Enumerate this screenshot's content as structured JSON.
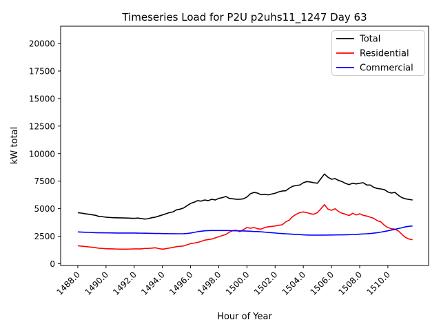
{
  "title": "Timeseries Load for P2U p2uhs11_1247  Day 63",
  "chart_data": {
    "type": "line",
    "title": "Timeseries Load for P2U p2uhs11_1247  Day 63",
    "xlabel": "Hour of Year",
    "ylabel": "kW total",
    "xlim": [
      1486.78,
      1512.89
    ],
    "ylim": [
      -160,
      21570
    ],
    "grid": false,
    "legend_position": "upper right",
    "xticks": [
      1488,
      1490,
      1492,
      1494,
      1496,
      1498,
      1500,
      1502,
      1504,
      1506,
      1508,
      1510
    ],
    "xtick_labels": [
      "1488.0",
      "1490.0",
      "1492.0",
      "1494.0",
      "1496.0",
      "1498.0",
      "1500.0",
      "1502.0",
      "1504.0",
      "1506.0",
      "1508.0",
      "1510.0"
    ],
    "yticks": [
      0,
      2500,
      5000,
      7500,
      10000,
      12500,
      15000,
      17500,
      20000
    ],
    "ytick_labels": [
      "0",
      "2500",
      "5000",
      "7500",
      "10000",
      "12500",
      "15000",
      "17500",
      "20000"
    ],
    "x_start": 1488.0,
    "x_step": 0.25,
    "series": [
      {
        "name": "Total",
        "color": "#000000",
        "values": [
          4630,
          4600,
          4540,
          4500,
          4445,
          4400,
          4290,
          4270,
          4225,
          4200,
          4180,
          4170,
          4165,
          4155,
          4150,
          4135,
          4120,
          4150,
          4100,
          4055,
          4090,
          4180,
          4230,
          4330,
          4430,
          4540,
          4645,
          4705,
          4895,
          4955,
          5060,
          5270,
          5475,
          5585,
          5730,
          5685,
          5790,
          5730,
          5855,
          5790,
          5935,
          6000,
          6105,
          5935,
          5895,
          5855,
          5855,
          5895,
          6060,
          6355,
          6480,
          6415,
          6270,
          6310,
          6250,
          6330,
          6400,
          6525,
          6605,
          6625,
          6855,
          7040,
          7105,
          7150,
          7355,
          7460,
          7420,
          7355,
          7310,
          7730,
          8150,
          7855,
          7670,
          7730,
          7565,
          7460,
          7290,
          7185,
          7310,
          7250,
          7310,
          7355,
          7150,
          7150,
          6935,
          6835,
          6790,
          6730,
          6520,
          6415,
          6480,
          6210,
          6000,
          5895,
          5835,
          5790
        ]
      },
      {
        "name": "Residential",
        "color": "#ff0000",
        "values": [
          1630,
          1600,
          1565,
          1530,
          1500,
          1455,
          1410,
          1390,
          1365,
          1355,
          1345,
          1335,
          1325,
          1325,
          1325,
          1335,
          1345,
          1345,
          1345,
          1390,
          1390,
          1420,
          1450,
          1375,
          1325,
          1365,
          1425,
          1480,
          1550,
          1580,
          1615,
          1720,
          1825,
          1875,
          1930,
          2035,
          2140,
          2190,
          2240,
          2345,
          2455,
          2555,
          2650,
          2865,
          3005,
          3035,
          2910,
          3100,
          3285,
          3225,
          3285,
          3180,
          3140,
          3285,
          3350,
          3390,
          3430,
          3490,
          3535,
          3805,
          3955,
          4290,
          4495,
          4645,
          4705,
          4645,
          4540,
          4495,
          4645,
          4995,
          5370,
          4960,
          4850,
          4995,
          4745,
          4580,
          4495,
          4370,
          4580,
          4430,
          4540,
          4395,
          4330,
          4225,
          4120,
          3910,
          3805,
          3495,
          3285,
          3180,
          3140,
          2975,
          2660,
          2390,
          2240,
          2180
        ]
      },
      {
        "name": "Commercial",
        "color": "#0000ff",
        "values": [
          2890,
          2875,
          2860,
          2845,
          2830,
          2820,
          2812,
          2808,
          2805,
          2800,
          2795,
          2790,
          2785,
          2785,
          2785,
          2785,
          2785,
          2780,
          2775,
          2770,
          2765,
          2758,
          2750,
          2745,
          2740,
          2735,
          2728,
          2724,
          2720,
          2720,
          2725,
          2750,
          2785,
          2845,
          2910,
          2950,
          2990,
          3005,
          3015,
          3015,
          3015,
          3015,
          3015,
          3010,
          3000,
          2990,
          2985,
          2975,
          2965,
          2950,
          2930,
          2920,
          2900,
          2870,
          2840,
          2820,
          2790,
          2760,
          2740,
          2720,
          2700,
          2680,
          2660,
          2645,
          2620,
          2610,
          2600,
          2600,
          2600,
          2600,
          2600,
          2605,
          2610,
          2615,
          2620,
          2625,
          2630,
          2640,
          2650,
          2665,
          2685,
          2705,
          2720,
          2745,
          2780,
          2820,
          2870,
          2930,
          2990,
          3060,
          3120,
          3200,
          3270,
          3350,
          3400,
          3430
        ]
      }
    ],
    "legend_border_color": "#cccccc",
    "spine_color": "#000000"
  }
}
